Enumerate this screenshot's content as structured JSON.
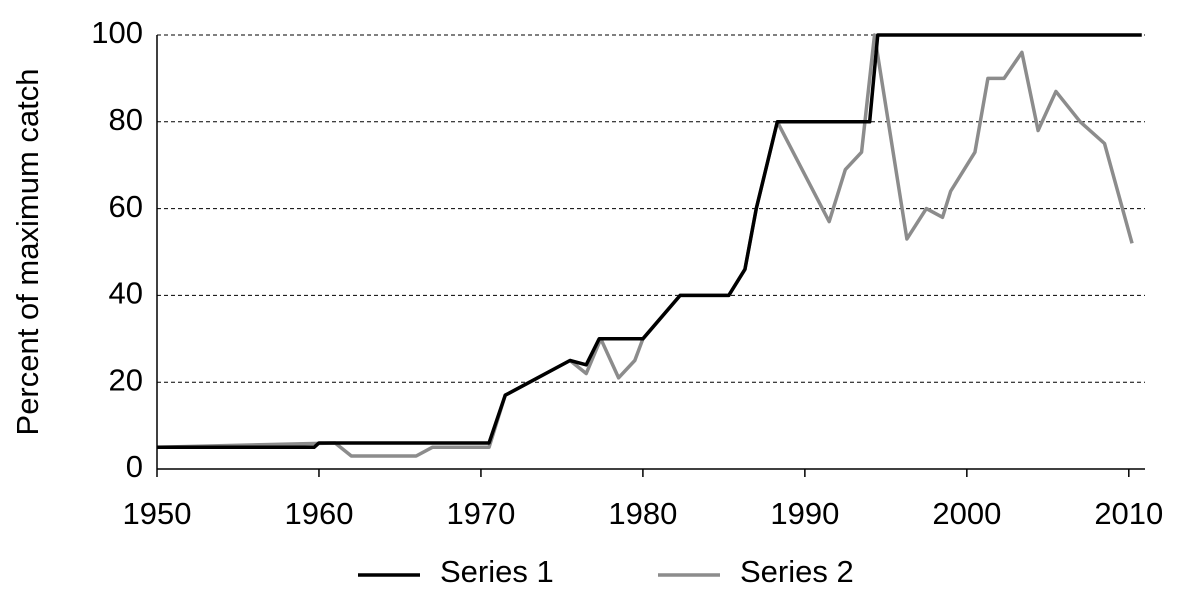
{
  "chart_data": {
    "type": "line",
    "y_label": "Percent of maximum catch",
    "xlim": [
      1950,
      2011
    ],
    "xticks": [
      1950,
      1960,
      1970,
      1980,
      1990,
      2000,
      2010
    ],
    "ylim": [
      0,
      100
    ],
    "yticks": [
      0,
      20,
      40,
      60,
      80,
      100
    ],
    "grid": true,
    "series": [
      {
        "name": "Series 1",
        "color": "#000000",
        "x": [
          1950,
          1959.7,
          1960,
          1970.5,
          1971.5,
          1975.5,
          1976.5,
          1977.3,
          1980,
          1982.3,
          1985.3,
          1986.3,
          1987,
          1988.3,
          1994,
          1994.5,
          2010.8
        ],
        "values": [
          5,
          5,
          6,
          6,
          17,
          25,
          24,
          30,
          30,
          40,
          40,
          46,
          60,
          80,
          80,
          100,
          100
        ]
      },
      {
        "name": "Series 2",
        "color": "#8c8c8c",
        "x": [
          1950,
          1961,
          1962,
          1966,
          1967,
          1970.5,
          1971.5,
          1975.5,
          1976.5,
          1977.4,
          1978.5,
          1979.5,
          1980,
          1982.3,
          1985.3,
          1986.3,
          1987,
          1988.3,
          1991.5,
          1992.5,
          1993.5,
          1994.3,
          1996.3,
          1997.5,
          1998.5,
          1999,
          2000.5,
          2001.3,
          2002.3,
          2003.4,
          2004.4,
          2005.5,
          2007,
          2008.5,
          2010.2
        ],
        "values": [
          5,
          6,
          3,
          3,
          5,
          5,
          17,
          25,
          22,
          30,
          21,
          25,
          30,
          40,
          40,
          46,
          60,
          80,
          57,
          69,
          73,
          100,
          53,
          60,
          58,
          64,
          73,
          90,
          90,
          96,
          78,
          87,
          80,
          75,
          52
        ]
      }
    ]
  }
}
